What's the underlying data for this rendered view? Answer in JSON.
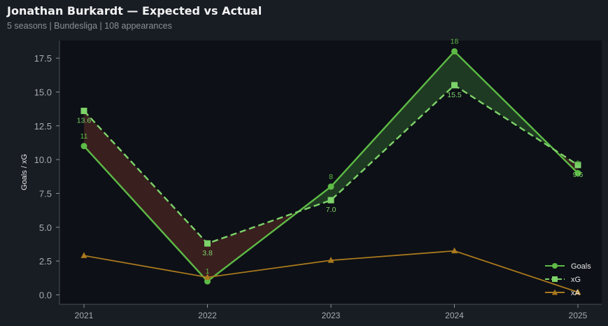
{
  "title": "Jonathan Burkardt — Expected vs Actual",
  "subtitle": "5 seasons | Bundesliga | 108 appearances",
  "chart_data": {
    "type": "line",
    "x": [
      "2021",
      "2022",
      "2023",
      "2024",
      "2025"
    ],
    "ylabel": "Goals / xG",
    "xlabel": "",
    "ylim": [
      -0.7,
      18.8
    ],
    "yticks": [
      "0.0",
      "2.5",
      "5.0",
      "7.5",
      "10.0",
      "12.5",
      "15.0",
      "17.5"
    ],
    "grid": false,
    "legend_position": "bottom-right",
    "series": [
      {
        "name": "Goals",
        "values": [
          11,
          1,
          8,
          18,
          9
        ],
        "labels": [
          "11",
          "1",
          "8",
          "18",
          "9"
        ],
        "color": "#5dbb46",
        "style": "solid",
        "marker": "circle"
      },
      {
        "name": "xG",
        "values": [
          13.6,
          3.8,
          7.0,
          15.5,
          9.6
        ],
        "labels": [
          "13.6",
          "3.8",
          "7.0",
          "15.5",
          "9.6"
        ],
        "color": "#7dd36a",
        "style": "dashed",
        "marker": "square"
      },
      {
        "name": "xA",
        "values": [
          2.9,
          1.3,
          2.55,
          3.25,
          0.2
        ],
        "color": "#a9791e",
        "style": "solid",
        "marker": "triangle"
      }
    ],
    "fill_colors": {
      "underperform": "#3a1f1f",
      "overperform": "#1f3a22"
    }
  }
}
